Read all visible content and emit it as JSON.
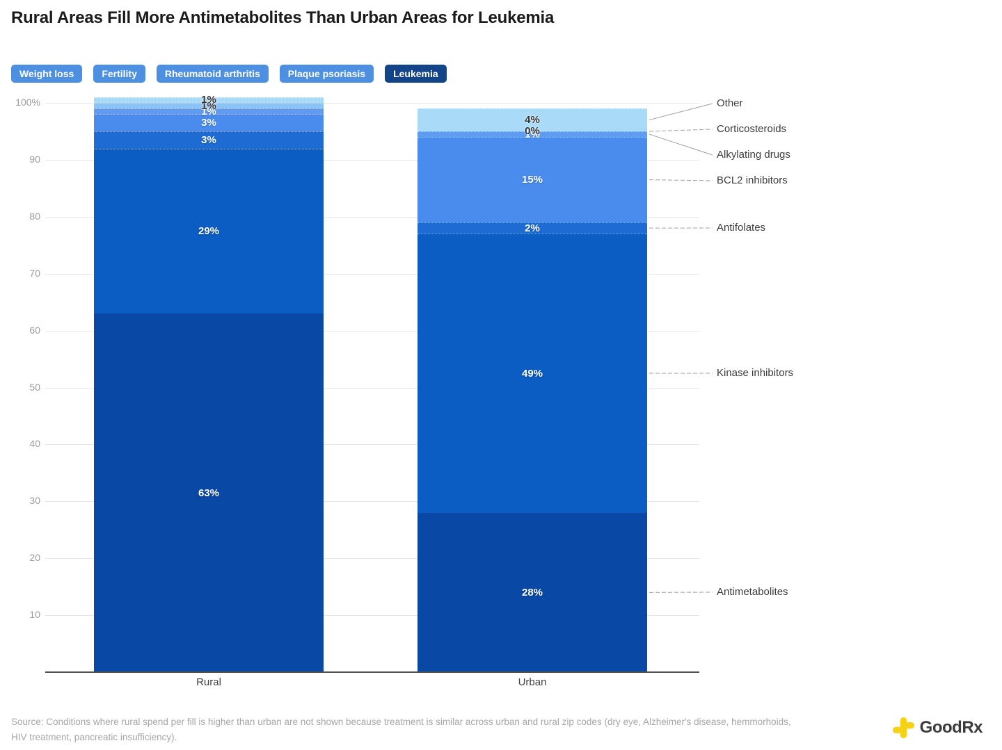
{
  "title": "Rural Areas Fill More Antimetabolites Than Urban Areas for Leukemia",
  "tabs": [
    {
      "label": "Weight loss",
      "active": false
    },
    {
      "label": "Fertility",
      "active": false
    },
    {
      "label": "Rheumatoid arthritis",
      "active": false
    },
    {
      "label": "Plaque psoriasis",
      "active": false
    },
    {
      "label": "Leukemia",
      "active": true
    }
  ],
  "chart_data": {
    "type": "bar",
    "subtype": "stacked-percent",
    "categories": [
      "Rural",
      "Urban"
    ],
    "series": [
      {
        "name": "Antimetabolites",
        "values": [
          63,
          28
        ],
        "color": "#0a48a6",
        "label_color": "light"
      },
      {
        "name": "Kinase inhibitors",
        "values": [
          29,
          49
        ],
        "color": "#0b5cc3",
        "label_color": "light"
      },
      {
        "name": "Antifolates",
        "values": [
          3,
          2
        ],
        "color": "#1e6cd3",
        "label_color": "light"
      },
      {
        "name": "BCL2 inhibitors",
        "values": [
          3,
          15
        ],
        "color": "#4a8cee",
        "label_color": "light"
      },
      {
        "name": "Alkylating drugs",
        "values": [
          1,
          1
        ],
        "color": "#5f9bf0",
        "label_color": "light"
      },
      {
        "name": "Corticosteroids",
        "values": [
          1,
          0
        ],
        "color": "#8ac3f6",
        "label_color": "dark"
      },
      {
        "name": "Other",
        "values": [
          1,
          4
        ],
        "color": "#a9dbf9",
        "label_color": "dark"
      }
    ],
    "y_ticks": [
      {
        "value": 100,
        "label": "100%"
      },
      {
        "value": 90,
        "label": "90"
      },
      {
        "value": 80,
        "label": "80"
      },
      {
        "value": 70,
        "label": "70"
      },
      {
        "value": 60,
        "label": "60"
      },
      {
        "value": 50,
        "label": "50"
      },
      {
        "value": 40,
        "label": "40"
      },
      {
        "value": 30,
        "label": "30"
      },
      {
        "value": 20,
        "label": "20"
      },
      {
        "value": 10,
        "label": "10"
      }
    ],
    "ylim": [
      0,
      100
    ],
    "grid": true,
    "legend_position": "right",
    "legend_order": [
      "Other",
      "Corticosteroids",
      "Alkylating drugs",
      "BCL2 inhibitors",
      "Antifolates",
      "Kinase inhibitors",
      "Antimetabolites"
    ]
  },
  "source": {
    "line1": "Source: Conditions where rural spend per fill is higher than urban are not shown because treatment is similar across urban and rural zip codes (dry eye, Alzheimer's disease, hemmorhoids,",
    "line2": "HIV treatment, pancreatic insufficiency)."
  },
  "logo": {
    "text": "GoodRx"
  },
  "colors": {
    "tab": "#4d90e2",
    "tab_active": "#134489",
    "gridline": "#e7e7e7",
    "baseline": "#4f4f4f",
    "leader_line": "#a0a0a0",
    "logo_yellow": "#f5d216"
  }
}
